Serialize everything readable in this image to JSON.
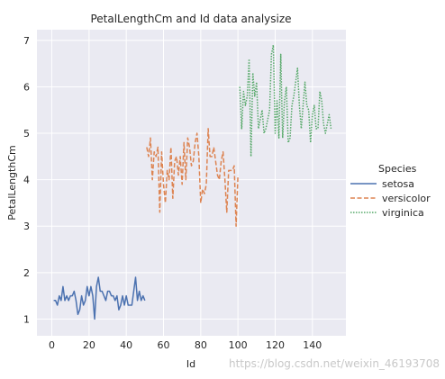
{
  "watermark": "https://blog.csdn.net/weixin_46193708",
  "chart_data": {
    "type": "line",
    "title": "PetalLengthCm and Id data analysize",
    "xlabel": "Id",
    "ylabel": "PetalLengthCm",
    "xlim": [
      -8,
      158
    ],
    "ylim": [
      0.64,
      7.23
    ],
    "xticks": [
      0,
      20,
      40,
      60,
      80,
      100,
      120,
      140
    ],
    "yticks": [
      1,
      2,
      3,
      4,
      5,
      6,
      7
    ],
    "grid": true,
    "legend": {
      "title": "Species",
      "placement": "right",
      "entries": [
        "setosa",
        "versicolor",
        "virginica"
      ]
    },
    "series": [
      {
        "name": "setosa",
        "color": "#4c72b0",
        "dash": "solid",
        "x": [
          1,
          2,
          3,
          4,
          5,
          6,
          7,
          8,
          9,
          10,
          11,
          12,
          13,
          14,
          15,
          16,
          17,
          18,
          19,
          20,
          21,
          22,
          23,
          24,
          25,
          26,
          27,
          28,
          29,
          30,
          31,
          32,
          33,
          34,
          35,
          36,
          37,
          38,
          39,
          40,
          41,
          42,
          43,
          44,
          45,
          46,
          47,
          48,
          49,
          50
        ],
        "values": [
          1.4,
          1.4,
          1.3,
          1.5,
          1.4,
          1.7,
          1.4,
          1.5,
          1.4,
          1.5,
          1.5,
          1.6,
          1.4,
          1.1,
          1.2,
          1.5,
          1.3,
          1.4,
          1.7,
          1.5,
          1.7,
          1.5,
          1.0,
          1.7,
          1.9,
          1.6,
          1.6,
          1.5,
          1.4,
          1.6,
          1.6,
          1.5,
          1.5,
          1.4,
          1.5,
          1.2,
          1.3,
          1.5,
          1.3,
          1.5,
          1.3,
          1.3,
          1.3,
          1.6,
          1.9,
          1.4,
          1.6,
          1.4,
          1.5,
          1.4
        ]
      },
      {
        "name": "versicolor",
        "color": "#dd8452",
        "dash": "dashed",
        "x": [
          51,
          52,
          53,
          54,
          55,
          56,
          57,
          58,
          59,
          60,
          61,
          62,
          63,
          64,
          65,
          66,
          67,
          68,
          69,
          70,
          71,
          72,
          73,
          74,
          75,
          76,
          77,
          78,
          79,
          80,
          81,
          82,
          83,
          84,
          85,
          86,
          87,
          88,
          89,
          90,
          91,
          92,
          93,
          94,
          95,
          96,
          97,
          98,
          99,
          100
        ],
        "values": [
          4.7,
          4.5,
          4.9,
          4.0,
          4.6,
          4.5,
          4.7,
          3.3,
          4.6,
          3.9,
          3.5,
          4.2,
          4.0,
          4.7,
          3.6,
          4.4,
          4.5,
          4.1,
          4.5,
          3.9,
          4.8,
          4.0,
          4.9,
          4.7,
          4.3,
          4.4,
          4.8,
          5.0,
          4.5,
          3.5,
          3.8,
          3.7,
          3.9,
          5.1,
          4.5,
          4.5,
          4.7,
          4.4,
          4.1,
          4.0,
          4.4,
          4.6,
          4.0,
          3.3,
          4.2,
          4.2,
          4.2,
          4.3,
          3.0,
          4.1
        ]
      },
      {
        "name": "virginica",
        "color": "#55a868",
        "dash": "dotted",
        "x": [
          101,
          102,
          103,
          104,
          105,
          106,
          107,
          108,
          109,
          110,
          111,
          112,
          113,
          114,
          115,
          116,
          117,
          118,
          119,
          120,
          121,
          122,
          123,
          124,
          125,
          126,
          127,
          128,
          129,
          130,
          131,
          132,
          133,
          134,
          135,
          136,
          137,
          138,
          139,
          140,
          141,
          142,
          143,
          144,
          145,
          146,
          147,
          148,
          149,
          150
        ],
        "values": [
          6.0,
          5.1,
          5.9,
          5.6,
          5.8,
          6.6,
          4.5,
          6.3,
          5.8,
          6.1,
          5.1,
          5.3,
          5.5,
          5.0,
          5.1,
          5.3,
          5.5,
          6.7,
          6.9,
          5.0,
          5.7,
          4.9,
          6.7,
          4.9,
          5.7,
          6.0,
          4.8,
          4.9,
          5.6,
          5.8,
          6.1,
          6.4,
          5.6,
          5.1,
          5.6,
          6.1,
          5.6,
          5.5,
          4.8,
          5.4,
          5.6,
          5.1,
          5.1,
          5.9,
          5.7,
          5.2,
          5.0,
          5.2,
          5.4,
          5.1
        ]
      }
    ]
  }
}
